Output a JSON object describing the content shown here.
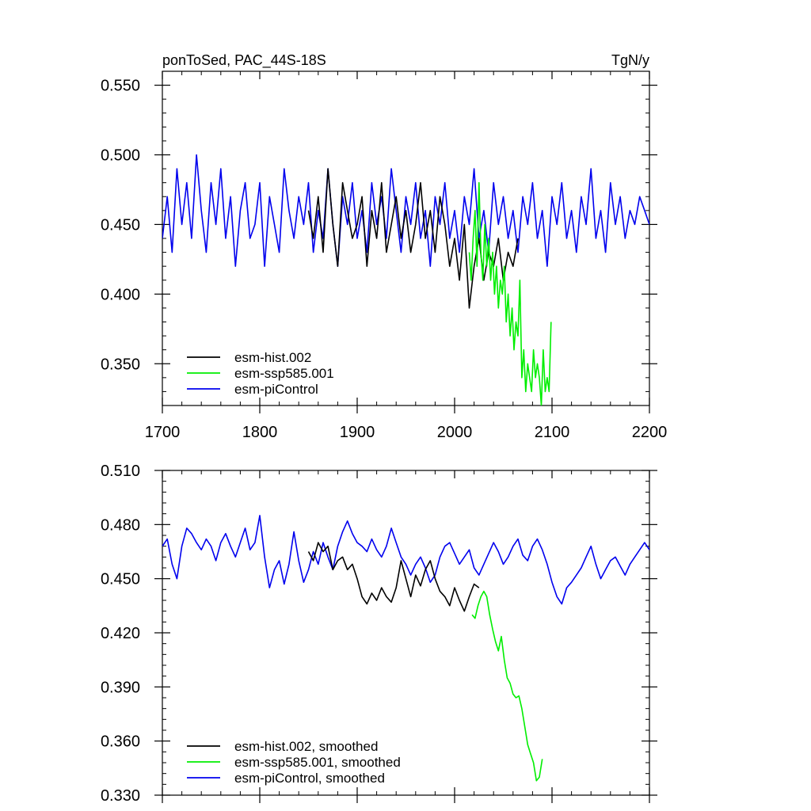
{
  "header": {
    "left_title": "ponToSed, PAC_44S-18S",
    "right_title": "TgN/y"
  },
  "colors": {
    "hist": "#000000",
    "ssp": "#00ee00",
    "ctrl": "#0000ee"
  },
  "chart_data": [
    {
      "type": "line",
      "title": "ponToSed, PAC_44S-18S",
      "units": "TgN/y",
      "xlim": [
        1700,
        2200
      ],
      "ylim": [
        0.32,
        0.56
      ],
      "x_ticks": [
        1700,
        1800,
        1900,
        2000,
        2100,
        2200
      ],
      "x_tick_labels": [
        "1700",
        "1800",
        "1900",
        "2000",
        "2100",
        "2200"
      ],
      "y_ticks": [
        0.35,
        0.4,
        0.45,
        0.5,
        0.55
      ],
      "y_tick_labels": [
        "0.350",
        "0.400",
        "0.450",
        "0.500",
        "0.550"
      ],
      "legend_position": "bottom-left",
      "series": [
        {
          "name": "esm-hist.002",
          "color_key": "hist",
          "x_start": 1850,
          "x_step": 5,
          "values": [
            0.46,
            0.44,
            0.47,
            0.43,
            0.49,
            0.45,
            0.42,
            0.48,
            0.46,
            0.44,
            0.45,
            0.47,
            0.42,
            0.46,
            0.44,
            0.48,
            0.43,
            0.45,
            0.47,
            0.44,
            0.46,
            0.43,
            0.45,
            0.48,
            0.44,
            0.46,
            0.43,
            0.47,
            0.45,
            0.42,
            0.44,
            0.41,
            0.45,
            0.39,
            0.42,
            0.44,
            0.41,
            0.43,
            0.42,
            0.44,
            0.41,
            0.43,
            0.42,
            0.44
          ]
        },
        {
          "name": "esm-ssp585.001",
          "color_key": "ssp",
          "x_start": 2015,
          "x_step": 2,
          "values": [
            0.43,
            0.41,
            0.44,
            0.46,
            0.42,
            0.48,
            0.43,
            0.41,
            0.45,
            0.42,
            0.44,
            0.41,
            0.43,
            0.4,
            0.42,
            0.39,
            0.41,
            0.4,
            0.42,
            0.38,
            0.4,
            0.37,
            0.39,
            0.36,
            0.38,
            0.37,
            0.41,
            0.34,
            0.36,
            0.33,
            0.35,
            0.34,
            0.33,
            0.36,
            0.34,
            0.35,
            0.34,
            0.32,
            0.36,
            0.33,
            0.34,
            0.33,
            0.38
          ]
        },
        {
          "name": "esm-piControl",
          "color_key": "ctrl",
          "x_start": 1700,
          "x_step": 5,
          "values": [
            0.44,
            0.47,
            0.43,
            0.49,
            0.45,
            0.48,
            0.44,
            0.5,
            0.46,
            0.43,
            0.48,
            0.45,
            0.49,
            0.44,
            0.47,
            0.42,
            0.46,
            0.48,
            0.44,
            0.45,
            0.48,
            0.42,
            0.47,
            0.45,
            0.43,
            0.49,
            0.46,
            0.44,
            0.47,
            0.45,
            0.48,
            0.43,
            0.46,
            0.44,
            0.49,
            0.45,
            0.42,
            0.47,
            0.45,
            0.48,
            0.44,
            0.46,
            0.43,
            0.48,
            0.45,
            0.47,
            0.44,
            0.49,
            0.46,
            0.43,
            0.47,
            0.45,
            0.48,
            0.44,
            0.46,
            0.42,
            0.47,
            0.45,
            0.48,
            0.44,
            0.46,
            0.43,
            0.47,
            0.45,
            0.49,
            0.44,
            0.46,
            0.43,
            0.48,
            0.45,
            0.47,
            0.44,
            0.46,
            0.43,
            0.47,
            0.45,
            0.48,
            0.44,
            0.46,
            0.42,
            0.47,
            0.45,
            0.48,
            0.44,
            0.46,
            0.43,
            0.47,
            0.45,
            0.49,
            0.44,
            0.46,
            0.43,
            0.48,
            0.45,
            0.47,
            0.44,
            0.46,
            0.45,
            0.47,
            0.46,
            0.45
          ]
        }
      ]
    },
    {
      "type": "line",
      "xlim": [
        1700,
        2200
      ],
      "ylim": [
        0.33,
        0.51
      ],
      "x_ticks": [
        1700,
        1800,
        1900,
        2000,
        2100,
        2200
      ],
      "y_ticks": [
        0.33,
        0.36,
        0.39,
        0.42,
        0.45,
        0.48,
        0.51
      ],
      "y_tick_labels": [
        "0.330",
        "0.360",
        "0.390",
        "0.420",
        "0.450",
        "0.480",
        "0.510"
      ],
      "legend_position": "bottom-left",
      "series": [
        {
          "name": "esm-hist.002, smoothed",
          "color_key": "hist",
          "x_start": 1850,
          "x_step": 5,
          "values": [
            0.465,
            0.46,
            0.47,
            0.465,
            0.468,
            0.455,
            0.46,
            0.462,
            0.455,
            0.458,
            0.45,
            0.44,
            0.436,
            0.442,
            0.438,
            0.445,
            0.44,
            0.437,
            0.445,
            0.46,
            0.45,
            0.44,
            0.452,
            0.446,
            0.455,
            0.46,
            0.45,
            0.443,
            0.44,
            0.435,
            0.445,
            0.438,
            0.432,
            0.44,
            0.447,
            0.445
          ]
        },
        {
          "name": "esm-ssp585.001, smoothed",
          "color_key": "ssp",
          "x_start": 2018,
          "x_step": 3,
          "values": [
            0.43,
            0.428,
            0.435,
            0.44,
            0.443,
            0.44,
            0.43,
            0.422,
            0.415,
            0.41,
            0.418,
            0.405,
            0.395,
            0.392,
            0.386,
            0.384,
            0.385,
            0.378,
            0.368,
            0.358,
            0.353,
            0.348,
            0.338,
            0.34,
            0.35
          ]
        },
        {
          "name": "esm-piControl, smoothed",
          "color_key": "ctrl",
          "x_start": 1700,
          "x_step": 5,
          "values": [
            0.468,
            0.472,
            0.458,
            0.45,
            0.468,
            0.478,
            0.475,
            0.47,
            0.466,
            0.472,
            0.468,
            0.46,
            0.47,
            0.475,
            0.468,
            0.462,
            0.47,
            0.478,
            0.466,
            0.47,
            0.485,
            0.462,
            0.445,
            0.455,
            0.46,
            0.447,
            0.458,
            0.476,
            0.46,
            0.448,
            0.455,
            0.465,
            0.458,
            0.47,
            0.462,
            0.455,
            0.468,
            0.476,
            0.482,
            0.475,
            0.47,
            0.468,
            0.465,
            0.472,
            0.466,
            0.462,
            0.468,
            0.478,
            0.47,
            0.462,
            0.458,
            0.452,
            0.458,
            0.462,
            0.456,
            0.448,
            0.452,
            0.462,
            0.468,
            0.47,
            0.464,
            0.458,
            0.462,
            0.466,
            0.456,
            0.452,
            0.458,
            0.464,
            0.47,
            0.465,
            0.458,
            0.462,
            0.468,
            0.472,
            0.463,
            0.46,
            0.468,
            0.472,
            0.466,
            0.458,
            0.448,
            0.44,
            0.436,
            0.445,
            0.448,
            0.452,
            0.456,
            0.462,
            0.468,
            0.458,
            0.45,
            0.455,
            0.46,
            0.462,
            0.457,
            0.452,
            0.458,
            0.462,
            0.466,
            0.47,
            0.466
          ]
        }
      ]
    }
  ]
}
